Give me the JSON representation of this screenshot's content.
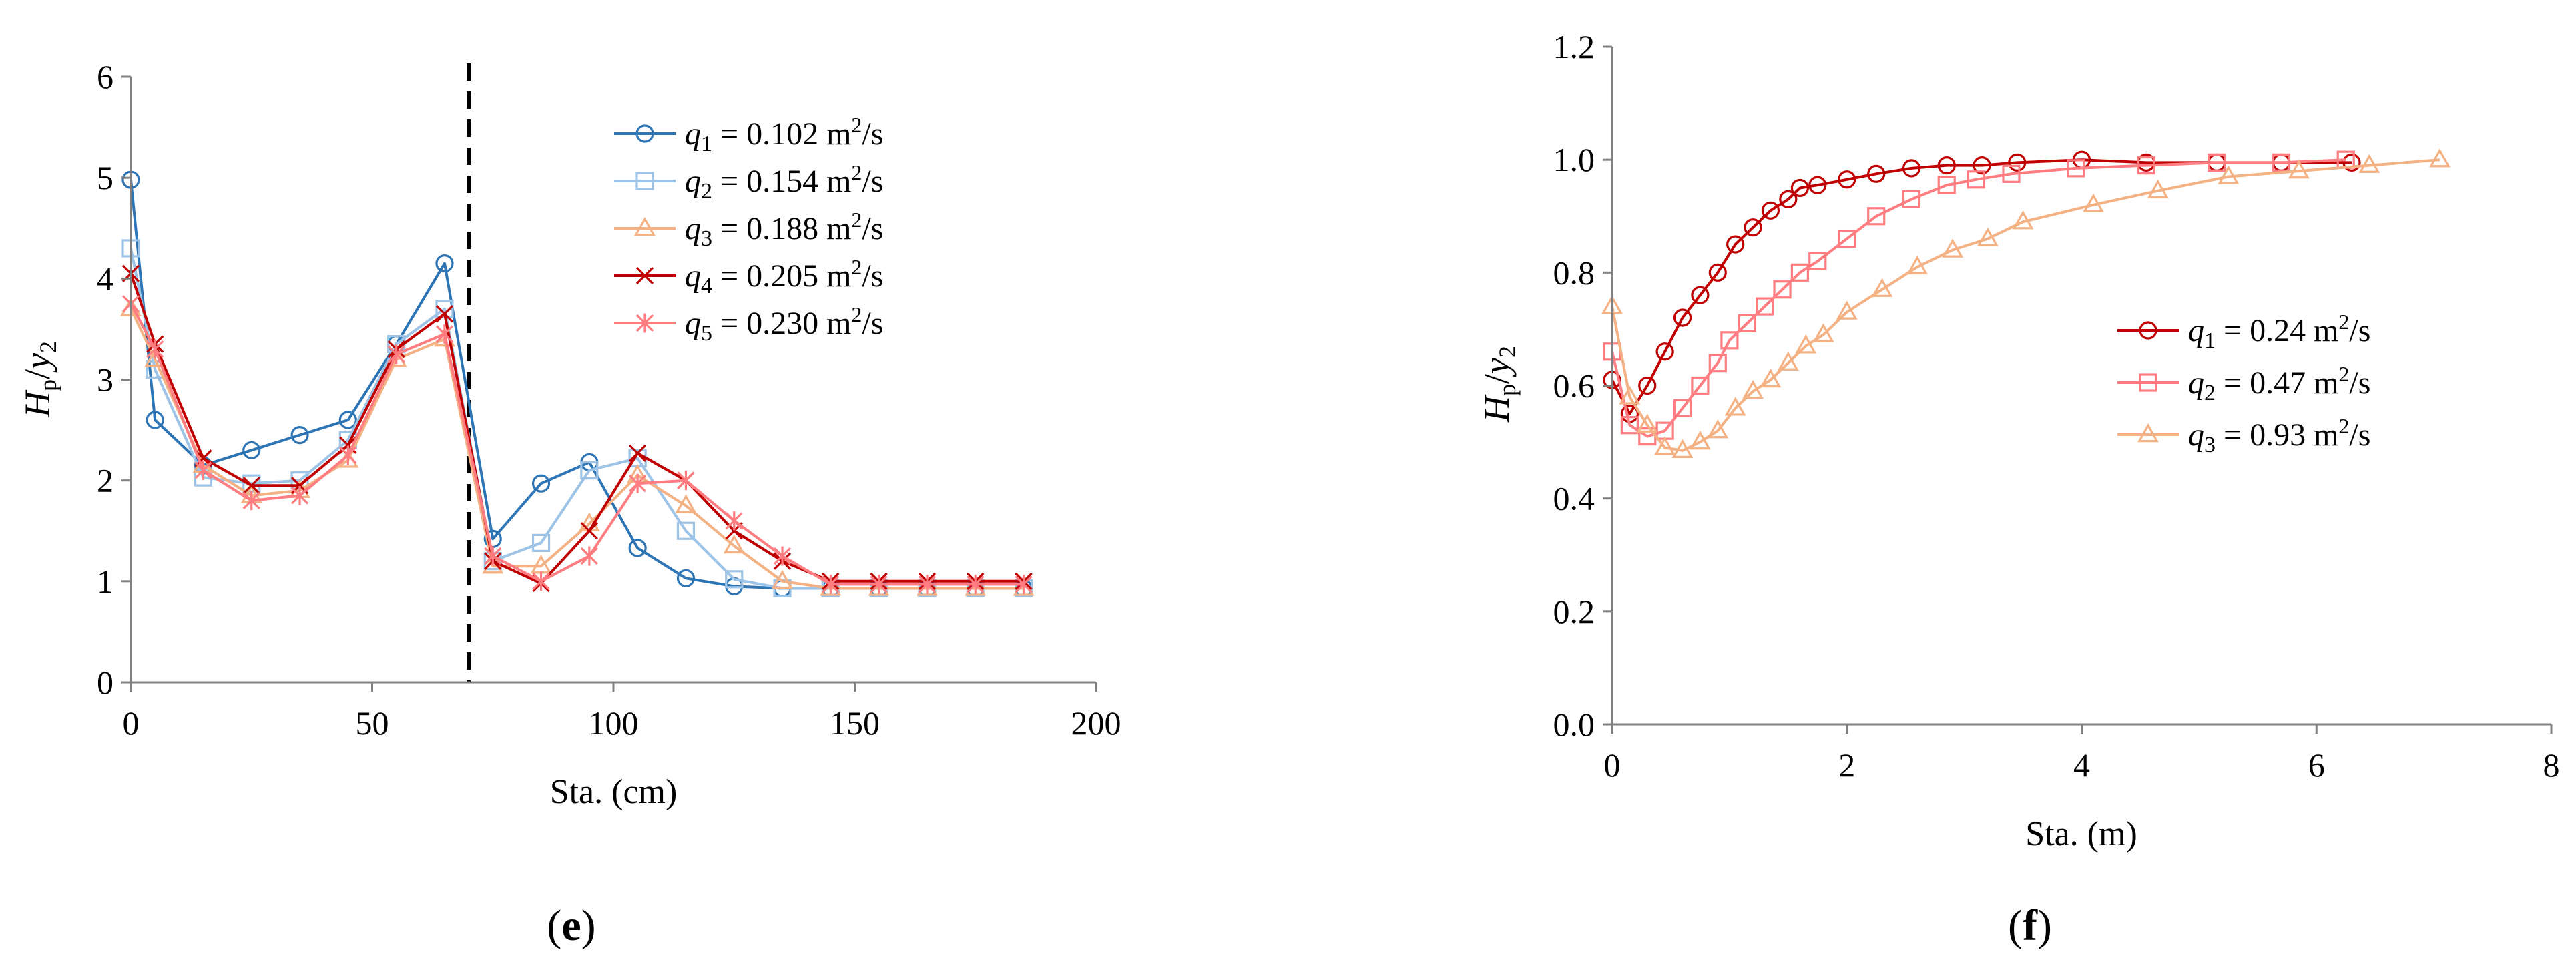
{
  "chart_data": [
    {
      "type": "line",
      "panel_label": "e",
      "xlabel": "Sta. (cm)",
      "ylabel": "Hp/y2",
      "xlim": [
        0,
        200
      ],
      "ylim": [
        0,
        6
      ],
      "xticks": [
        "0",
        "50",
        "100",
        "150",
        "200"
      ],
      "yticks": [
        "0",
        "1",
        "2",
        "3",
        "4",
        "5",
        "6"
      ],
      "grid": false,
      "legend_position": "top-right",
      "vline_x": 70,
      "series": [
        {
          "name": "q1 = 0.102 m²/s",
          "q": "1",
          "value": "0.102",
          "marker": "circle",
          "color": "#2E75B6",
          "x": [
            0,
            5,
            15,
            25,
            35,
            45,
            55,
            65,
            75,
            85,
            95,
            105,
            115,
            125,
            135,
            145,
            155,
            165,
            175,
            185
          ],
          "y": [
            4.98,
            2.6,
            2.15,
            2.3,
            2.45,
            2.6,
            3.35,
            4.15,
            1.42,
            1.97,
            2.18,
            1.33,
            1.03,
            0.95,
            0.93,
            0.93,
            0.93,
            0.93,
            0.93,
            0.93
          ]
        },
        {
          "name": "q2 = 0.154 m²/s",
          "q": "2",
          "value": "0.154",
          "marker": "square",
          "color": "#9DC3E6",
          "x": [
            0,
            5,
            15,
            25,
            35,
            45,
            55,
            65,
            75,
            85,
            95,
            105,
            115,
            125,
            135,
            145,
            155,
            165,
            175,
            185
          ],
          "y": [
            4.3,
            3.1,
            2.03,
            1.97,
            2.0,
            2.4,
            3.35,
            3.7,
            1.2,
            1.38,
            2.1,
            2.22,
            1.5,
            1.02,
            0.93,
            0.93,
            0.93,
            0.93,
            0.93,
            0.93
          ]
        },
        {
          "name": "q3 = 0.188 m²/s",
          "q": "3",
          "value": "0.188",
          "marker": "triangle",
          "color": "#F4B183",
          "x": [
            0,
            5,
            15,
            25,
            35,
            45,
            55,
            65,
            75,
            85,
            95,
            105,
            115,
            125,
            135,
            145,
            155,
            165,
            175,
            185
          ],
          "y": [
            3.7,
            3.2,
            2.15,
            1.85,
            1.9,
            2.2,
            3.2,
            3.4,
            1.15,
            1.15,
            1.57,
            2.05,
            1.75,
            1.35,
            1.0,
            0.93,
            0.93,
            0.93,
            0.93,
            0.93
          ]
        },
        {
          "name": "q4 = 0.205 m²/s",
          "q": "4",
          "value": "0.205",
          "marker": "x",
          "color": "#C00000",
          "x": [
            0,
            5,
            15,
            25,
            35,
            45,
            55,
            65,
            75,
            85,
            95,
            105,
            115,
            125,
            135,
            145,
            155,
            165,
            175,
            185
          ],
          "y": [
            4.05,
            3.35,
            2.22,
            1.95,
            1.95,
            2.35,
            3.3,
            3.65,
            1.2,
            0.98,
            1.5,
            2.27,
            2.0,
            1.5,
            1.2,
            1.0,
            1.0,
            1.0,
            1.0,
            1.0
          ]
        },
        {
          "name": "q5 = 0.230 m²/s",
          "q": "5",
          "value": "0.230",
          "marker": "asterisk",
          "color": "#FF7C80",
          "x": [
            0,
            5,
            15,
            25,
            35,
            45,
            55,
            65,
            75,
            85,
            95,
            105,
            115,
            125,
            135,
            145,
            155,
            165,
            175,
            185
          ],
          "y": [
            3.75,
            3.3,
            2.1,
            1.8,
            1.85,
            2.25,
            3.25,
            3.45,
            1.25,
            1.0,
            1.25,
            1.97,
            2.0,
            1.6,
            1.25,
            0.97,
            0.97,
            0.97,
            0.97,
            0.97
          ]
        }
      ]
    },
    {
      "type": "line",
      "panel_label": "f",
      "xlabel": "Sta. (m)",
      "ylabel": "Hp/y2",
      "xlim": [
        0,
        8
      ],
      "ylim": [
        0,
        1.2
      ],
      "xticks": [
        "0",
        "2",
        "4",
        "6",
        "8"
      ],
      "yticks": [
        "0.0",
        "0.2",
        "0.4",
        "0.6",
        "0.8",
        "1.0",
        "1.2"
      ],
      "grid": false,
      "legend_position": "center-right",
      "series": [
        {
          "name": "q1 = 0.24 m²/s",
          "q": "1",
          "value": "0.24",
          "marker": "circle",
          "color": "#C00000",
          "x": [
            0,
            0.15,
            0.3,
            0.45,
            0.6,
            0.75,
            0.9,
            1.05,
            1.2,
            1.35,
            1.5,
            1.6,
            1.75,
            2.0,
            2.25,
            2.55,
            2.85,
            3.15,
            3.45,
            4.0,
            4.55,
            5.15,
            5.7,
            6.3
          ],
          "y": [
            0.61,
            0.55,
            0.6,
            0.66,
            0.72,
            0.76,
            0.8,
            0.85,
            0.88,
            0.91,
            0.93,
            0.95,
            0.955,
            0.965,
            0.975,
            0.985,
            0.99,
            0.99,
            0.995,
            1.0,
            0.995,
            0.995,
            0.995,
            0.995
          ]
        },
        {
          "name": "q2 = 0.47 m²/s",
          "q": "2",
          "value": "0.47",
          "marker": "square",
          "color": "#FF7C80",
          "x": [
            0,
            0.15,
            0.3,
            0.45,
            0.6,
            0.75,
            0.9,
            1.0,
            1.15,
            1.3,
            1.45,
            1.6,
            1.75,
            2.0,
            2.25,
            2.55,
            2.85,
            3.1,
            3.4,
            3.95,
            4.55,
            5.15,
            5.7,
            6.25
          ],
          "y": [
            0.66,
            0.53,
            0.51,
            0.52,
            0.56,
            0.6,
            0.64,
            0.68,
            0.71,
            0.74,
            0.77,
            0.8,
            0.82,
            0.86,
            0.9,
            0.93,
            0.955,
            0.965,
            0.975,
            0.985,
            0.99,
            0.995,
            0.995,
            1.0
          ]
        },
        {
          "name": "q3 = 0.93 m²/s",
          "q": "3",
          "value": "0.93",
          "marker": "triangle",
          "color": "#F4B183",
          "x": [
            0,
            0.15,
            0.3,
            0.45,
            0.6,
            0.75,
            0.9,
            1.05,
            1.2,
            1.35,
            1.5,
            1.65,
            1.8,
            2.0,
            2.3,
            2.6,
            2.9,
            3.2,
            3.5,
            4.1,
            4.65,
            5.25,
            5.85,
            6.45,
            7.05
          ],
          "y": [
            0.74,
            0.58,
            0.53,
            0.49,
            0.485,
            0.5,
            0.52,
            0.56,
            0.59,
            0.61,
            0.64,
            0.67,
            0.69,
            0.73,
            0.77,
            0.81,
            0.84,
            0.86,
            0.89,
            0.92,
            0.945,
            0.97,
            0.98,
            0.99,
            1.0
          ]
        }
      ]
    }
  ]
}
